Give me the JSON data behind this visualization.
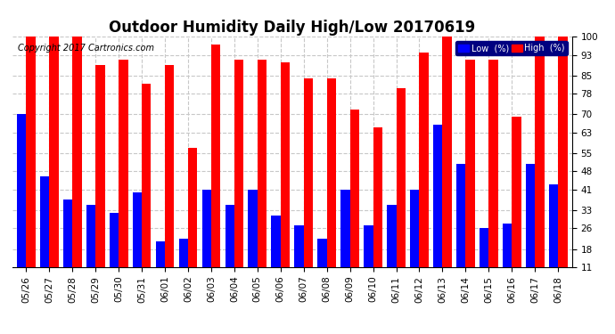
{
  "title": "Outdoor Humidity Daily High/Low 20170619",
  "copyright": "Copyright 2017 Cartronics.com",
  "categories": [
    "05/26",
    "05/27",
    "05/28",
    "05/29",
    "05/30",
    "05/31",
    "06/01",
    "06/02",
    "06/03",
    "06/04",
    "06/05",
    "06/06",
    "06/07",
    "06/08",
    "06/09",
    "06/10",
    "06/11",
    "06/12",
    "06/13",
    "06/14",
    "06/15",
    "06/16",
    "06/17",
    "06/18"
  ],
  "high_values": [
    100,
    100,
    100,
    89,
    91,
    82,
    89,
    57,
    97,
    91,
    91,
    90,
    84,
    84,
    72,
    65,
    80,
    94,
    100,
    91,
    91,
    69,
    100,
    100
  ],
  "low_values": [
    70,
    46,
    37,
    35,
    32,
    40,
    21,
    22,
    41,
    35,
    41,
    31,
    27,
    22,
    41,
    27,
    35,
    41,
    66,
    51,
    26,
    28,
    51,
    43
  ],
  "bar_width": 0.4,
  "ylim_min": 11,
  "ylim_max": 100,
  "yticks": [
    11,
    18,
    26,
    33,
    41,
    48,
    55,
    63,
    70,
    78,
    85,
    93,
    100
  ],
  "background_color": "#ffffff",
  "plot_bg_color": "#ffffff",
  "high_color": "#ff0000",
  "low_color": "#0000ff",
  "grid_color": "#c8c8c8",
  "title_fontsize": 12,
  "tick_fontsize": 7.5,
  "copyright_fontsize": 7,
  "legend_low_label": "Low  (%)",
  "legend_high_label": "High  (%)"
}
